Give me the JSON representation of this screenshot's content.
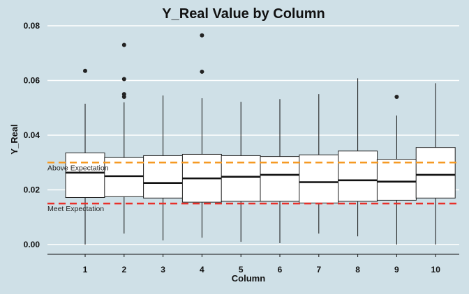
{
  "chart_data": {
    "type": "box",
    "title": "Y_Real Value by Column",
    "xlabel": "Column",
    "ylabel": "Y_Real",
    "ylim": [
      -0.004,
      0.082
    ],
    "yticks": [
      "0.00",
      "0.02",
      "0.04",
      "0.06",
      "0.08"
    ],
    "ytick_values": [
      0.0,
      0.02,
      0.04,
      0.06,
      0.08
    ],
    "grid": true,
    "categories": [
      "1",
      "2",
      "3",
      "4",
      "5",
      "6",
      "7",
      "8",
      "9",
      "10"
    ],
    "boxes": [
      {
        "min": 0.0,
        "q1": 0.0172,
        "median": 0.0263,
        "q3": 0.0335,
        "max": 0.0515,
        "outliers": [
          0.0635
        ]
      },
      {
        "min": 0.004,
        "q1": 0.0175,
        "median": 0.025,
        "q3": 0.0318,
        "max": 0.052,
        "outliers": [
          0.073,
          0.0605,
          0.055,
          0.054
        ]
      },
      {
        "min": 0.0015,
        "q1": 0.017,
        "median": 0.0225,
        "q3": 0.0325,
        "max": 0.0545,
        "outliers": []
      },
      {
        "min": 0.0025,
        "q1": 0.0155,
        "median": 0.0242,
        "q3": 0.033,
        "max": 0.0535,
        "outliers": [
          0.0765,
          0.0632
        ]
      },
      {
        "min": 0.001,
        "q1": 0.0158,
        "median": 0.0248,
        "q3": 0.0325,
        "max": 0.0522,
        "outliers": []
      },
      {
        "min": 0.0005,
        "q1": 0.0158,
        "median": 0.0255,
        "q3": 0.0322,
        "max": 0.0532,
        "outliers": []
      },
      {
        "min": 0.004,
        "q1": 0.0152,
        "median": 0.0228,
        "q3": 0.0328,
        "max": 0.055,
        "outliers": []
      },
      {
        "min": 0.003,
        "q1": 0.0158,
        "median": 0.0235,
        "q3": 0.0342,
        "max": 0.0608,
        "outliers": []
      },
      {
        "min": 0.0,
        "q1": 0.0162,
        "median": 0.023,
        "q3": 0.0312,
        "max": 0.0472,
        "outliers": [
          0.054
        ]
      },
      {
        "min": 0.0,
        "q1": 0.017,
        "median": 0.0255,
        "q3": 0.0355,
        "max": 0.059,
        "outliers": []
      }
    ],
    "reference_lines": [
      {
        "label": "Above Expectation",
        "value": 0.03,
        "color": "#f59a23"
      },
      {
        "label": "Meet Expectation",
        "value": 0.015,
        "color": "#e8302a"
      }
    ]
  }
}
